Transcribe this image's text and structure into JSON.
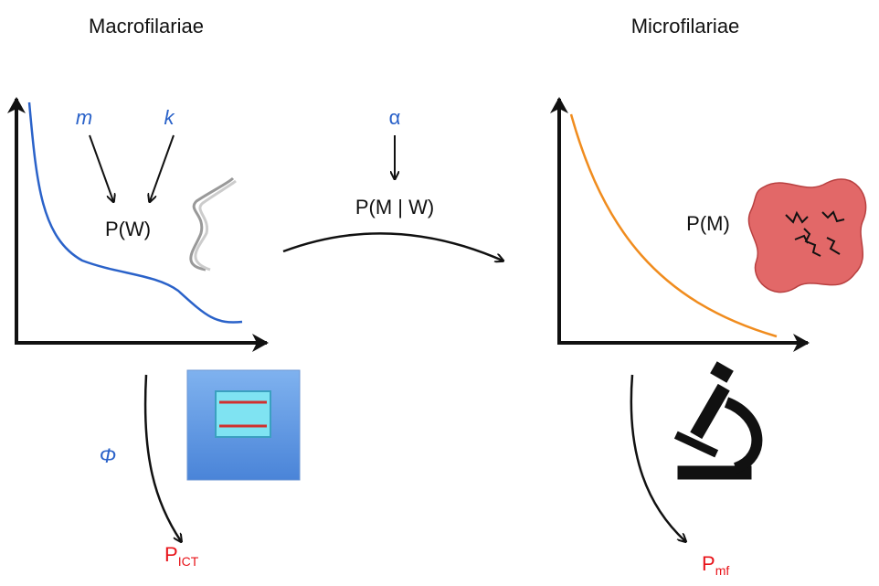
{
  "left": {
    "title": "Macrofilariae",
    "param_m": "m",
    "param_k": "k",
    "distribution": "P(W)",
    "param_phi": "Φ",
    "outcome": {
      "main": "P",
      "sub": "ICT"
    }
  },
  "middle": {
    "param_alpha": "α",
    "distribution": "P(M | W)"
  },
  "right": {
    "title": "Microfilariae",
    "distribution": "P(M)",
    "outcome": {
      "main": "P",
      "sub": "mf"
    }
  }
}
